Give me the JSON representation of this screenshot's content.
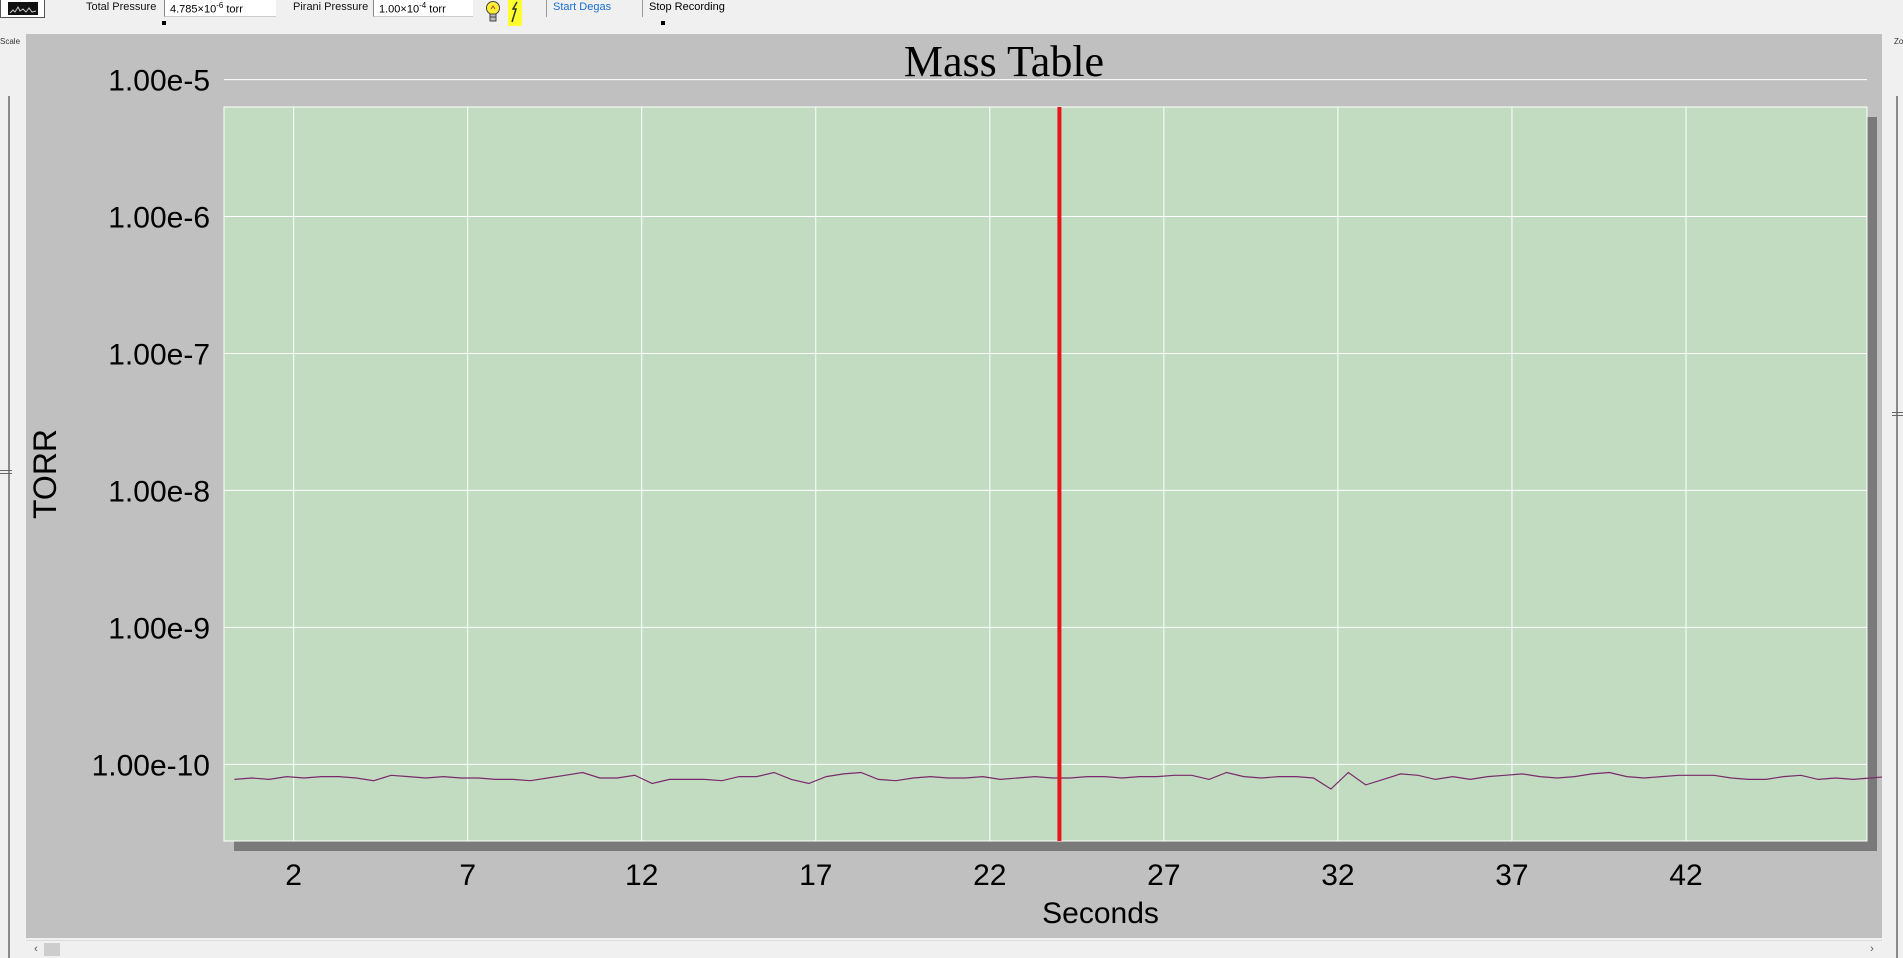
{
  "toolbar": {
    "total_pressure_label": "Total Pressure",
    "total_pressure_mantissa": "4.785×10",
    "total_pressure_exponent": "-6",
    "total_pressure_unit": " torr",
    "pirani_pressure_label": "Pirani Pressure",
    "pirani_pressure_mantissa": "1.00×10",
    "pirani_pressure_exponent": "-4",
    "pirani_pressure_unit": " torr",
    "start_degas_label": "Start Degas",
    "stop_recording_label": "Stop Recording"
  },
  "side": {
    "scale_label": "Scale",
    "zoom_label": "Zo"
  },
  "colors": {
    "plot_bg": "#c1dcc1",
    "panel_bg": "#c0c0c0",
    "trace": "#7a2a6a",
    "cursor": "#e8141a",
    "grid": "#ffffff"
  },
  "chart_data": {
    "type": "line",
    "title": "Mass Table",
    "xlabel": "Seconds",
    "ylabel": "TORR",
    "yscale": "log",
    "xlim": [
      0,
      47.2
    ],
    "ylim_exponent": [
      -10.56,
      -5.2
    ],
    "x_tick_labels": [
      "2",
      "7",
      "12",
      "17",
      "22",
      "27",
      "32",
      "37",
      "42"
    ],
    "x_tick_values": [
      2,
      7,
      12,
      17,
      22,
      27,
      32,
      37,
      42
    ],
    "y_tick_labels": [
      "1.00e-5",
      "1.00e-6",
      "1.00e-7",
      "1.00e-8",
      "1.00e-9",
      "1.00e-10"
    ],
    "y_tick_exponents": [
      -5,
      -6,
      -7,
      -8,
      -9,
      -10
    ],
    "cursor_x": 24.0,
    "series": [
      {
        "x_start": 0.3,
        "x_step": 0.5,
        "log10_values": [
          -10.11,
          -10.1,
          -10.11,
          -10.09,
          -10.1,
          -10.09,
          -10.09,
          -10.1,
          -10.12,
          -10.08,
          -10.09,
          -10.1,
          -10.09,
          -10.1,
          -10.1,
          -10.11,
          -10.11,
          -10.12,
          -10.1,
          -10.08,
          -10.06,
          -10.1,
          -10.1,
          -10.08,
          -10.14,
          -10.11,
          -10.11,
          -10.11,
          -10.12,
          -10.09,
          -10.09,
          -10.06,
          -10.11,
          -10.14,
          -10.09,
          -10.07,
          -10.06,
          -10.11,
          -10.12,
          -10.1,
          -10.09,
          -10.1,
          -10.1,
          -10.09,
          -10.11,
          -10.1,
          -10.09,
          -10.1,
          -10.1,
          -10.09,
          -10.09,
          -10.1,
          -10.09,
          -10.09,
          -10.08,
          -10.08,
          -10.11,
          -10.06,
          -10.09,
          -10.1,
          -10.09,
          -10.09,
          -10.1,
          -10.18,
          -10.06,
          -10.15,
          -10.11,
          -10.07,
          -10.08,
          -10.11,
          -10.09,
          -10.11,
          -10.09,
          -10.08,
          -10.07,
          -10.09,
          -10.1,
          -10.09,
          -10.07,
          -10.06,
          -10.09,
          -10.1,
          -10.09,
          -10.08,
          -10.08,
          -10.08,
          -10.1,
          -10.11,
          -10.11,
          -10.09,
          -10.08,
          -10.11,
          -10.1,
          -10.11,
          -10.1,
          -10.09,
          -10.09
        ]
      }
    ]
  }
}
